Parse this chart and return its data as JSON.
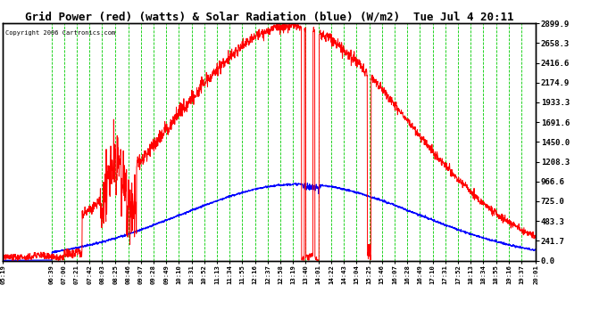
{
  "title": "Grid Power (red) (watts) & Solar Radiation (blue) (W/m2)  Tue Jul 4 20:11",
  "copyright": "Copyright 2006 Cartronics.com",
  "bg_color": "#ffffff",
  "plot_bg_color": "#ffffff",
  "grid_color": "#00cc00",
  "ylabel_right_values": [
    0.0,
    241.7,
    483.3,
    725.0,
    966.6,
    1208.3,
    1450.0,
    1691.6,
    1933.3,
    2174.9,
    2416.6,
    2658.3,
    2899.9
  ],
  "ymax": 2899.9,
  "ymin": 0.0,
  "x_tick_labels": [
    "05:19",
    "06:39",
    "07:00",
    "07:21",
    "07:42",
    "08:03",
    "08:25",
    "08:46",
    "09:07",
    "09:28",
    "09:49",
    "10:10",
    "10:31",
    "10:52",
    "11:13",
    "11:34",
    "11:55",
    "12:16",
    "12:37",
    "12:58",
    "13:19",
    "13:40",
    "14:01",
    "14:22",
    "14:43",
    "15:04",
    "15:25",
    "15:46",
    "16:07",
    "16:28",
    "16:49",
    "17:10",
    "17:31",
    "17:52",
    "18:13",
    "18:34",
    "18:55",
    "19:16",
    "19:37",
    "20:01"
  ],
  "solar_peak_minute": 810,
  "solar_sigma": 195,
  "solar_max": 935,
  "grid_peak_minute": 795,
  "grid_sigma": 190,
  "grid_max": 2870
}
